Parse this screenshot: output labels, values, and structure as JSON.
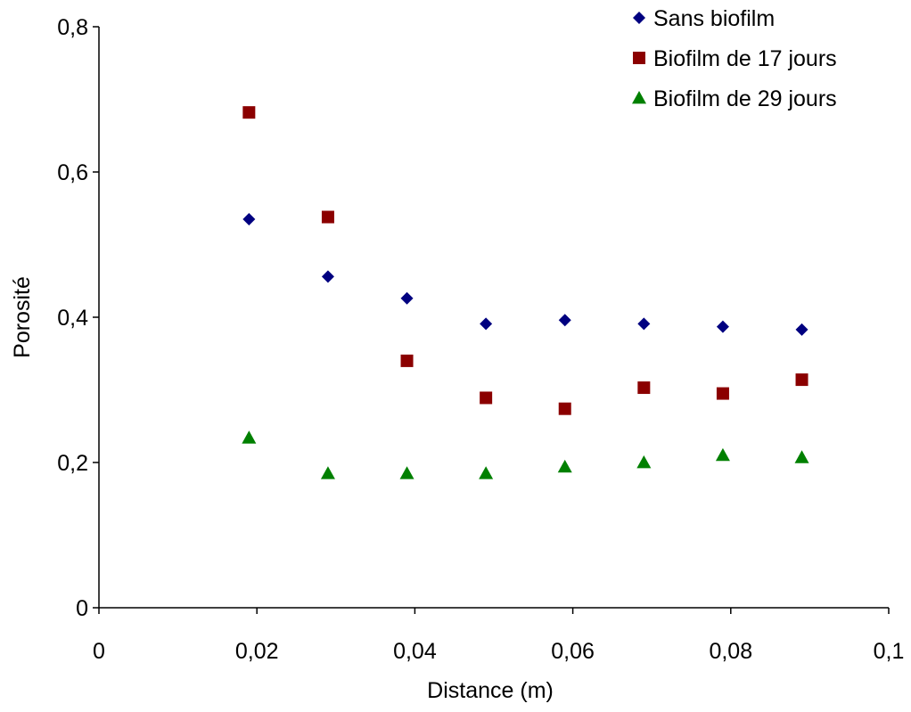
{
  "chart_data": {
    "type": "scatter",
    "xlabel": "Distance (m)",
    "ylabel": "Porosité",
    "xlim": [
      0,
      0.1
    ],
    "ylim": [
      0,
      0.8
    ],
    "x_ticks": [
      "0",
      "0,02",
      "0,04",
      "0,06",
      "0,08",
      "0,1"
    ],
    "y_ticks": [
      "0",
      "0,2",
      "0,4",
      "0,6",
      "0,8"
    ],
    "grid": false,
    "legend_position": "top-right",
    "x": [
      0.019,
      0.029,
      0.039,
      0.049,
      0.059,
      0.069,
      0.079,
      0.089
    ],
    "series": [
      {
        "name": "Sans biofilm",
        "marker": "diamond",
        "color": "#000080",
        "values": [
          0.535,
          0.456,
          0.426,
          0.391,
          0.396,
          0.391,
          0.387,
          0.383
        ]
      },
      {
        "name": "Biofilm de 17 jours",
        "marker": "square",
        "color": "#8B0000",
        "values": [
          0.682,
          0.538,
          0.34,
          0.289,
          0.274,
          0.303,
          0.295,
          0.314
        ]
      },
      {
        "name": "Biofilm de 29 jours",
        "marker": "triangle",
        "color": "#008000",
        "values": [
          0.234,
          0.185,
          0.185,
          0.185,
          0.194,
          0.2,
          0.21,
          0.207
        ]
      }
    ]
  }
}
